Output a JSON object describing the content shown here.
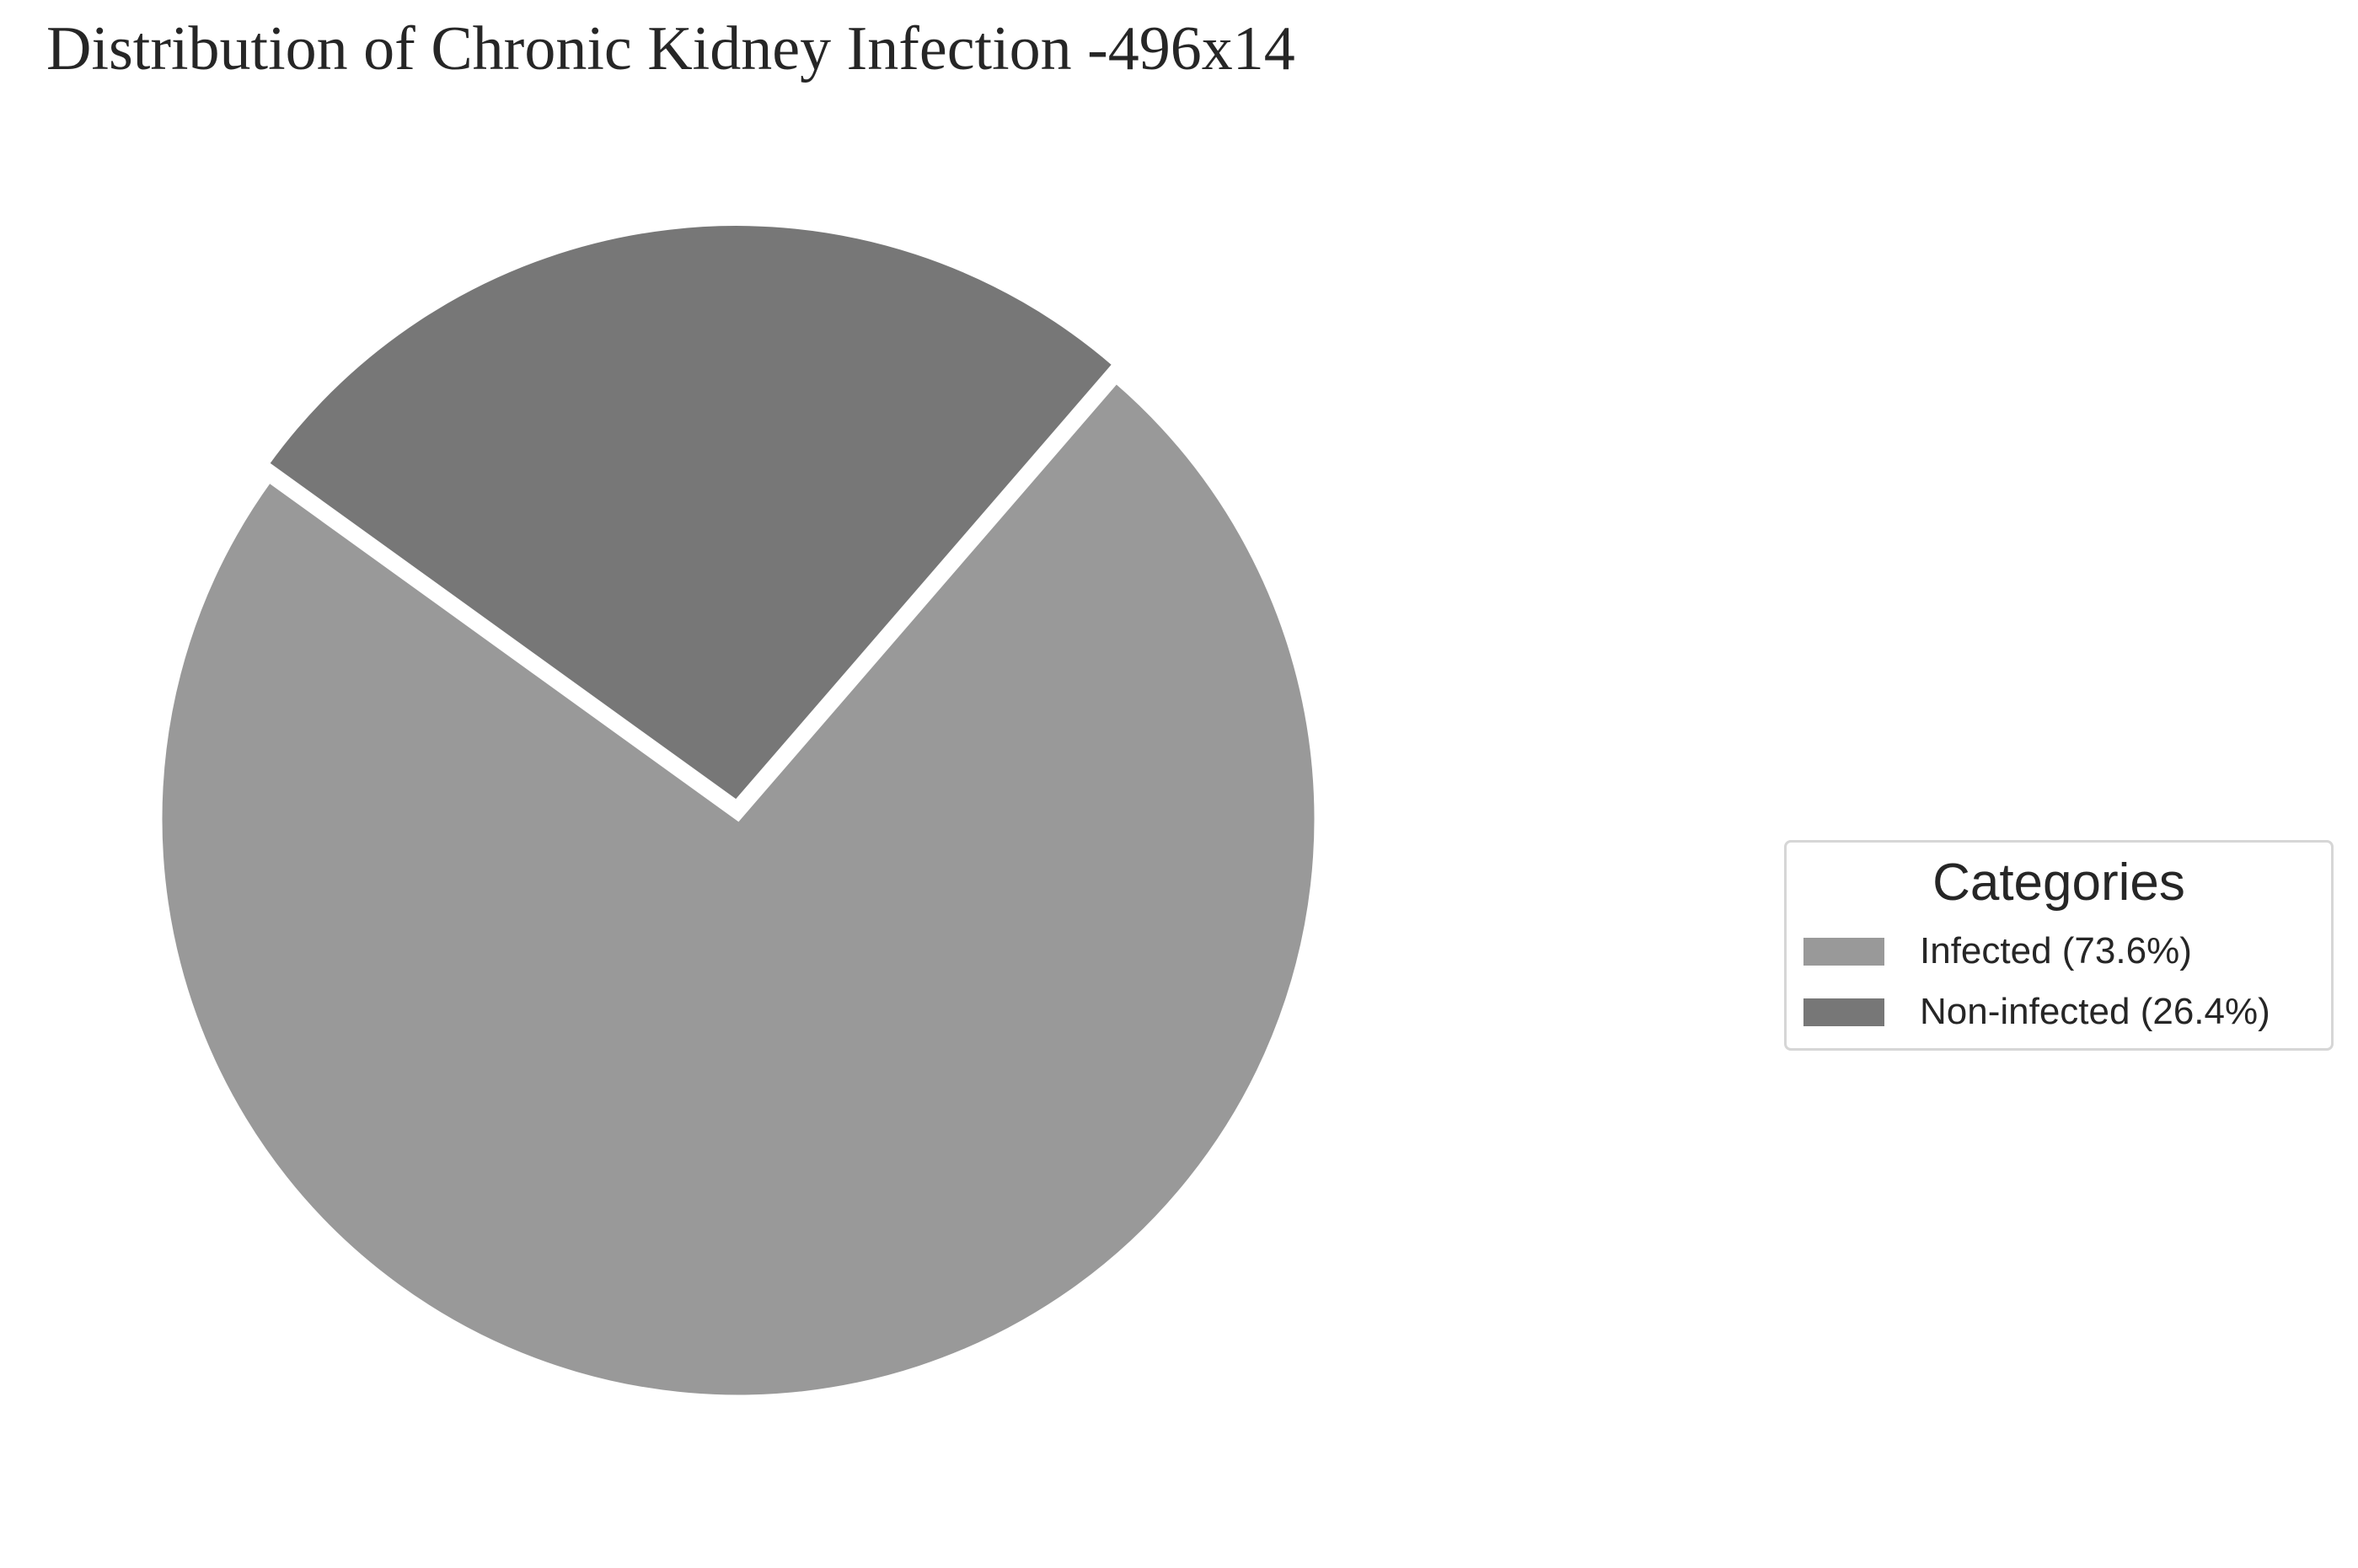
{
  "chart_data": {
    "type": "pie",
    "title": "Distribution of Chronic Kidney Infection -496x14",
    "slices": [
      {
        "label": "Infected",
        "value": 73.6,
        "color": "#999999"
      },
      {
        "label": "Non-infected",
        "value": 26.4,
        "color": "#777777"
      }
    ],
    "legend": {
      "title": "Categories",
      "placement": "center-right",
      "entries": [
        "Infected (73.6%)",
        "Non-infected (26.4%)"
      ]
    },
    "slice_separator_color": "#ffffff",
    "explode": [
      0,
      0.03
    ]
  }
}
